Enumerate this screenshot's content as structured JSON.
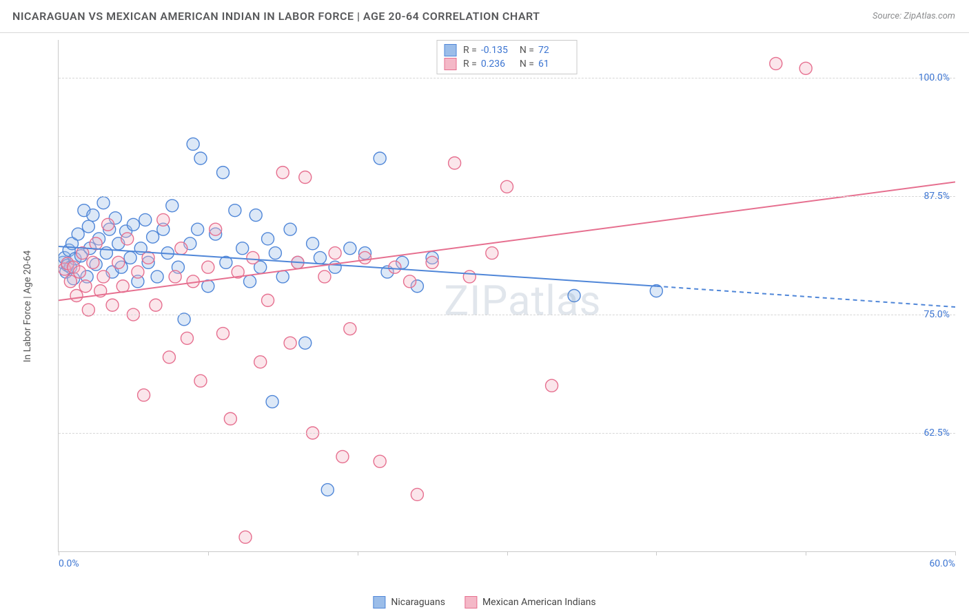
{
  "title": "NICARAGUAN VS MEXICAN AMERICAN INDIAN IN LABOR FORCE | AGE 20-64 CORRELATION CHART",
  "source": "Source: ZipAtlas.com",
  "y_axis_label": "In Labor Force | Age 20-64",
  "watermark": "ZIPatlas",
  "chart": {
    "type": "scatter",
    "background_color": "#ffffff",
    "grid_color": "#d6d6d6",
    "axis_color": "#c9c9c9",
    "xlim": [
      0,
      60
    ],
    "ylim": [
      50,
      104
    ],
    "x_ticks": [
      0,
      10,
      20,
      30,
      40,
      50,
      60
    ],
    "x_tick_labels": {
      "0": "0.0%",
      "60": "60.0%"
    },
    "y_gridlines": [
      62.5,
      75.0,
      87.5,
      100.0
    ],
    "y_tick_labels": [
      "62.5%",
      "75.0%",
      "87.5%",
      "100.0%"
    ],
    "marker_radius": 9,
    "marker_fill_opacity": 0.35,
    "marker_stroke_width": 1.4,
    "line_width": 2
  },
  "series": [
    {
      "key": "nicaraguans",
      "label": "Nicaraguans",
      "color_stroke": "#4f86d8",
      "color_fill": "#9bbde9",
      "R": "-0.135",
      "N": "72",
      "trend": {
        "x1": 0,
        "y1": 82.2,
        "x2_solid": 40,
        "y2_solid": 78.0,
        "x2_dash": 60,
        "y2_dash": 75.8
      },
      "points": [
        [
          0.3,
          80.5
        ],
        [
          0.4,
          81.0
        ],
        [
          0.5,
          79.5
        ],
        [
          0.6,
          80.2
        ],
        [
          0.7,
          81.8
        ],
        [
          0.8,
          80.0
        ],
        [
          0.9,
          82.5
        ],
        [
          1.0,
          78.8
        ],
        [
          1.1,
          80.9
        ],
        [
          1.3,
          83.5
        ],
        [
          1.5,
          81.2
        ],
        [
          1.7,
          86.0
        ],
        [
          1.9,
          79.0
        ],
        [
          2.0,
          84.3
        ],
        [
          2.1,
          82.0
        ],
        [
          2.3,
          85.5
        ],
        [
          2.5,
          80.3
        ],
        [
          2.7,
          83.0
        ],
        [
          3.0,
          86.8
        ],
        [
          3.2,
          81.5
        ],
        [
          3.4,
          84.0
        ],
        [
          3.6,
          79.5
        ],
        [
          3.8,
          85.2
        ],
        [
          4.0,
          82.5
        ],
        [
          4.2,
          80.0
        ],
        [
          4.5,
          83.8
        ],
        [
          4.8,
          81.0
        ],
        [
          5.0,
          84.5
        ],
        [
          5.3,
          78.5
        ],
        [
          5.5,
          82.0
        ],
        [
          5.8,
          85.0
        ],
        [
          6.0,
          80.5
        ],
        [
          6.3,
          83.2
        ],
        [
          6.6,
          79.0
        ],
        [
          7.0,
          84.0
        ],
        [
          7.3,
          81.5
        ],
        [
          7.6,
          86.5
        ],
        [
          8.0,
          80.0
        ],
        [
          8.4,
          74.5
        ],
        [
          8.8,
          82.5
        ],
        [
          9.0,
          93.0
        ],
        [
          9.3,
          84.0
        ],
        [
          9.5,
          91.5
        ],
        [
          10.0,
          78.0
        ],
        [
          10.5,
          83.5
        ],
        [
          11.0,
          90.0
        ],
        [
          11.2,
          80.5
        ],
        [
          11.8,
          86.0
        ],
        [
          12.3,
          82.0
        ],
        [
          12.8,
          78.5
        ],
        [
          13.2,
          85.5
        ],
        [
          13.5,
          80.0
        ],
        [
          14.0,
          83.0
        ],
        [
          14.3,
          65.8
        ],
        [
          14.5,
          81.5
        ],
        [
          15.0,
          79.0
        ],
        [
          15.5,
          84.0
        ],
        [
          16.0,
          80.5
        ],
        [
          16.5,
          72.0
        ],
        [
          17.0,
          82.5
        ],
        [
          17.5,
          81.0
        ],
        [
          18.0,
          56.5
        ],
        [
          18.5,
          80.0
        ],
        [
          19.5,
          82.0
        ],
        [
          20.5,
          81.5
        ],
        [
          21.5,
          91.5
        ],
        [
          22.0,
          79.5
        ],
        [
          23.0,
          80.5
        ],
        [
          24.0,
          78.0
        ],
        [
          25.0,
          81.0
        ],
        [
          34.5,
          77.0
        ],
        [
          40.0,
          77.5
        ]
      ]
    },
    {
      "key": "mexican_american_indians",
      "label": "Mexican American Indians",
      "color_stroke": "#e66f8f",
      "color_fill": "#f4b8c7",
      "R": "0.236",
      "N": "61",
      "trend": {
        "x1": 0,
        "y1": 76.5,
        "x2_solid": 60,
        "y2_solid": 89.0,
        "x2_dash": 60,
        "y2_dash": 89.0
      },
      "points": [
        [
          0.4,
          79.8
        ],
        [
          0.6,
          80.4
        ],
        [
          0.8,
          78.5
        ],
        [
          1.0,
          80.0
        ],
        [
          1.2,
          77.0
        ],
        [
          1.4,
          79.5
        ],
        [
          1.6,
          81.5
        ],
        [
          1.8,
          78.0
        ],
        [
          2.0,
          75.5
        ],
        [
          2.3,
          80.5
        ],
        [
          2.5,
          82.5
        ],
        [
          2.8,
          77.5
        ],
        [
          3.0,
          79.0
        ],
        [
          3.3,
          84.5
        ],
        [
          3.6,
          76.0
        ],
        [
          4.0,
          80.5
        ],
        [
          4.3,
          78.0
        ],
        [
          4.6,
          83.0
        ],
        [
          5.0,
          75.0
        ],
        [
          5.3,
          79.5
        ],
        [
          5.7,
          66.5
        ],
        [
          6.0,
          81.0
        ],
        [
          6.5,
          76.0
        ],
        [
          7.0,
          85.0
        ],
        [
          7.4,
          70.5
        ],
        [
          7.8,
          79.0
        ],
        [
          8.2,
          82.0
        ],
        [
          8.6,
          72.5
        ],
        [
          9.0,
          78.5
        ],
        [
          9.5,
          68.0
        ],
        [
          10.0,
          80.0
        ],
        [
          10.5,
          84.0
        ],
        [
          11.0,
          73.0
        ],
        [
          11.5,
          64.0
        ],
        [
          12.0,
          79.5
        ],
        [
          12.5,
          51.5
        ],
        [
          13.0,
          81.0
        ],
        [
          13.5,
          70.0
        ],
        [
          14.0,
          76.5
        ],
        [
          15.0,
          90.0
        ],
        [
          15.5,
          72.0
        ],
        [
          16.0,
          80.5
        ],
        [
          16.5,
          89.5
        ],
        [
          17.0,
          62.5
        ],
        [
          17.8,
          79.0
        ],
        [
          18.5,
          81.5
        ],
        [
          19.0,
          60.0
        ],
        [
          19.5,
          73.5
        ],
        [
          20.5,
          81.0
        ],
        [
          21.5,
          59.5
        ],
        [
          22.5,
          80.0
        ],
        [
          23.5,
          78.5
        ],
        [
          24.0,
          56.0
        ],
        [
          25.0,
          80.5
        ],
        [
          26.5,
          91.0
        ],
        [
          27.5,
          79.0
        ],
        [
          29.0,
          81.5
        ],
        [
          30.0,
          88.5
        ],
        [
          33.0,
          67.5
        ],
        [
          48.0,
          101.5
        ],
        [
          50.0,
          101.0
        ]
      ]
    }
  ],
  "stats_legend_labels": {
    "R": "R = ",
    "N": "N = "
  },
  "label_color": "#3b74d1",
  "text_color": "#555555"
}
